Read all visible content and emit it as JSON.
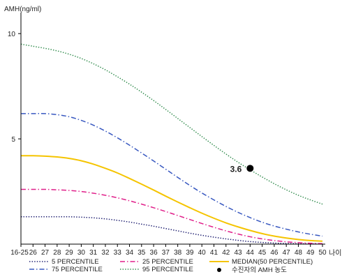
{
  "chart_data": {
    "type": "line",
    "ylabel": "AMH(ng/ml)",
    "xlabel": "나이",
    "x_tick_labels": [
      "16-25",
      "26",
      "27",
      "28",
      "29",
      "30",
      "31",
      "32",
      "33",
      "34",
      "35",
      "36",
      "37",
      "38",
      "39",
      "40",
      "41",
      "42",
      "43",
      "44",
      "45",
      "46",
      "47",
      "48",
      "49",
      "50"
    ],
    "y_ticks": [
      5,
      10
    ],
    "ylim": [
      0,
      11
    ],
    "grid": false,
    "legend_position": "bottom",
    "series": [
      {
        "name": "5 PERCENTILE",
        "color": "#1a1a6e",
        "dash": "dotted",
        "values": [
          1.3,
          1.3,
          1.3,
          1.3,
          1.3,
          1.28,
          1.25,
          1.2,
          1.13,
          1.05,
          0.95,
          0.85,
          0.74,
          0.63,
          0.52,
          0.42,
          0.33,
          0.25,
          0.18,
          0.12,
          0.08,
          0.05,
          0.03,
          0.02,
          0.01,
          0.01
        ]
      },
      {
        "name": "25 PERCENTILE",
        "color": "#e0208a",
        "dash": "dashdot",
        "values": [
          2.6,
          2.6,
          2.6,
          2.58,
          2.55,
          2.5,
          2.42,
          2.32,
          2.2,
          2.06,
          1.9,
          1.73,
          1.55,
          1.36,
          1.17,
          0.98,
          0.8,
          0.63,
          0.48,
          0.35,
          0.25,
          0.17,
          0.11,
          0.07,
          0.04,
          0.02
        ]
      },
      {
        "name": "MEDIAN(50 PERCENTILE)",
        "color": "#f5c400",
        "dash": "solid",
        "values": [
          4.2,
          4.2,
          4.18,
          4.14,
          4.07,
          3.96,
          3.8,
          3.6,
          3.38,
          3.12,
          2.85,
          2.57,
          2.28,
          2,
          1.73,
          1.47,
          1.23,
          1.01,
          0.82,
          0.65,
          0.5,
          0.38,
          0.29,
          0.22,
          0.17,
          0.14
        ]
      },
      {
        "name": "75 PERCENTILE",
        "color": "#3858c0",
        "dash": "dashdot",
        "values": [
          6.2,
          6.2,
          6.2,
          6.15,
          6.05,
          5.88,
          5.65,
          5.37,
          5.05,
          4.7,
          4.33,
          3.95,
          3.56,
          3.17,
          2.79,
          2.43,
          2.1,
          1.79,
          1.51,
          1.26,
          1.04,
          0.86,
          0.71,
          0.58,
          0.47,
          0.38
        ]
      },
      {
        "name": "95 PERCENTILE",
        "color": "#2e8a4a",
        "dash": "dotted",
        "values": [
          9.5,
          9.4,
          9.3,
          9.18,
          9.02,
          8.82,
          8.57,
          8.28,
          7.95,
          7.6,
          7.22,
          6.82,
          6.4,
          5.97,
          5.54,
          5.11,
          4.69,
          4.28,
          3.89,
          3.53,
          3.19,
          2.87,
          2.58,
          2.32,
          2.1,
          1.9
        ]
      }
    ],
    "marker": {
      "name": "수진자의 AMH 농도",
      "x": "44",
      "y": 3.6,
      "label": "3.6",
      "color": "#000000"
    }
  }
}
